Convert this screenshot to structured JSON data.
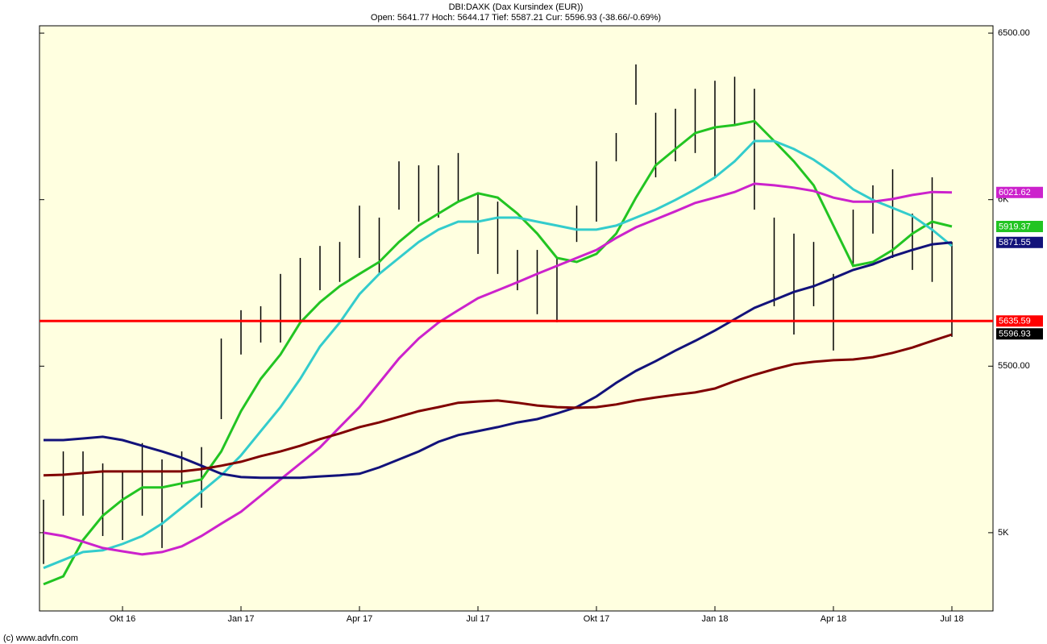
{
  "chart_data": {
    "type": "ohlc",
    "title": "DBI:DAXK (Dax Kursindex (EUR))",
    "subtitle": "Open: 5641.77 Hoch: 5644.17 Tief: 5587.21 Cur: 5596.93 (-38.66/-0.69%)",
    "footer": "(c) www.advfn.com",
    "x": [
      null,
      null,
      null,
      null,
      "Okt 16",
      null,
      null,
      null,
      null,
      null,
      "Jan 17",
      null,
      null,
      null,
      null,
      null,
      "Apr 17",
      null,
      null,
      null,
      null,
      null,
      "Jul 17",
      null,
      null,
      null,
      null,
      null,
      "Okt 17",
      null,
      null,
      null,
      null,
      null,
      "Jan 18",
      null,
      null,
      null,
      null,
      null,
      "Apr 18",
      null,
      null,
      null,
      null,
      null,
      "Jul 18"
    ],
    "high": [
      5099,
      5244,
      5244,
      5208,
      5184,
      5269,
      5220,
      5244,
      5257,
      5583,
      5668,
      5680,
      5777,
      5825,
      5861,
      5873,
      5982,
      5946,
      6115,
      6103,
      6103,
      6140,
      6017,
      5994,
      5849,
      5849,
      5825,
      5982,
      6115,
      6200,
      6406,
      6261,
      6273,
      6333,
      6357,
      6369,
      6333,
      5946,
      5898,
      5873,
      5777,
      5970,
      6043,
      6091,
      5958,
      6067,
      5873
    ],
    "low": [
      4906,
      5051,
      5051,
      4990,
      4978,
      5051,
      4954,
      5136,
      5075,
      5341,
      5535,
      5571,
      5571,
      5632,
      5728,
      5753,
      5825,
      5777,
      5970,
      5934,
      5946,
      5994,
      5837,
      5777,
      5728,
      5656,
      5632,
      5873,
      5934,
      6115,
      6285,
      6067,
      6115,
      6140,
      6067,
      6224,
      5970,
      5680,
      5595,
      5680,
      5547,
      5801,
      5898,
      5825,
      5789,
      5753,
      5588
    ],
    "bar_color": "#000000",
    "series": [
      {
        "color": "#22c422",
        "values": [
          4845,
          4869,
          4978,
          5051,
          5099,
          5136,
          5136,
          5148,
          5160,
          5244,
          5365,
          5462,
          5535,
          5631,
          5692,
          5740,
          5777,
          5813,
          5873,
          5922,
          5958,
          5994,
          6019,
          6006,
          5958,
          5898,
          5825,
          5813,
          5837,
          5898,
          6006,
          6103,
          6152,
          6200,
          6217,
          6224,
          6236,
          6176,
          6115,
          6043,
          5922,
          5801,
          5813,
          5849,
          5898,
          5934,
          5919.37
        ]
      },
      {
        "color": "#33cccc",
        "values": [
          4894,
          4918,
          4942,
          4947,
          4966,
          4990,
          5027,
          5075,
          5123,
          5172,
          5232,
          5305,
          5377,
          5462,
          5559,
          5631,
          5716,
          5777,
          5825,
          5873,
          5910,
          5934,
          5934,
          5946,
          5946,
          5934,
          5922,
          5910,
          5910,
          5922,
          5946,
          5970,
          5999,
          6031,
          6067,
          6115,
          6176,
          6176,
          6152,
          6120,
          6079,
          6031,
          5999,
          5975,
          5951,
          5910,
          5861
        ]
      },
      {
        "color": "#cc22cc",
        "values": [
          5000,
          4990,
          4973,
          4954,
          4944,
          4935,
          4942,
          4959,
          4990,
          5027,
          5063,
          5111,
          5160,
          5208,
          5256,
          5317,
          5377,
          5450,
          5523,
          5583,
          5631,
          5668,
          5704,
          5728,
          5752,
          5777,
          5801,
          5825,
          5849,
          5885,
          5917,
          5941,
          5965,
          5990,
          6006,
          6023,
          6048,
          6043,
          6036,
          6026,
          6006,
          5994,
          5994,
          6002,
          6014,
          6023,
          6021.62
        ]
      },
      {
        "color": "#12127a",
        "values": [
          5278,
          5278,
          5283,
          5288,
          5278,
          5261,
          5244,
          5225,
          5201,
          5177,
          5167,
          5165,
          5165,
          5165,
          5169,
          5172,
          5177,
          5196,
          5220,
          5244,
          5273,
          5293,
          5305,
          5317,
          5331,
          5341,
          5358,
          5377,
          5409,
          5450,
          5486,
          5515,
          5547,
          5576,
          5607,
          5641,
          5675,
          5699,
          5723,
          5740,
          5764,
          5789,
          5806,
          5830,
          5849,
          5866,
          5871.55
        ]
      },
      {
        "color": "#800000",
        "values": [
          5172,
          5174,
          5179,
          5184,
          5184,
          5184,
          5184,
          5184,
          5191,
          5201,
          5213,
          5230,
          5244,
          5261,
          5281,
          5298,
          5317,
          5331,
          5348,
          5365,
          5377,
          5390,
          5394,
          5397,
          5390,
          5382,
          5377,
          5375,
          5377,
          5385,
          5397,
          5406,
          5414,
          5421,
          5433,
          5455,
          5474,
          5491,
          5506,
          5513,
          5518,
          5520,
          5527,
          5540,
          5556,
          5576,
          5595
        ]
      }
    ],
    "value_label_series": [
      2,
      0,
      3
    ],
    "reference_line": {
      "value": 5635.59,
      "color": "#ff0000"
    },
    "last_price": {
      "value": 5596.93,
      "color": "#000000"
    },
    "ylim": [
      4765,
      6522
    ],
    "yticks": [
      {
        "value": 6500,
        "label": "6500.00"
      },
      {
        "value": 6000,
        "label": "6K"
      },
      {
        "value": 5500,
        "label": "5500.00"
      },
      {
        "value": 5000,
        "label": "5K"
      }
    ],
    "background": "#ffffe0"
  }
}
